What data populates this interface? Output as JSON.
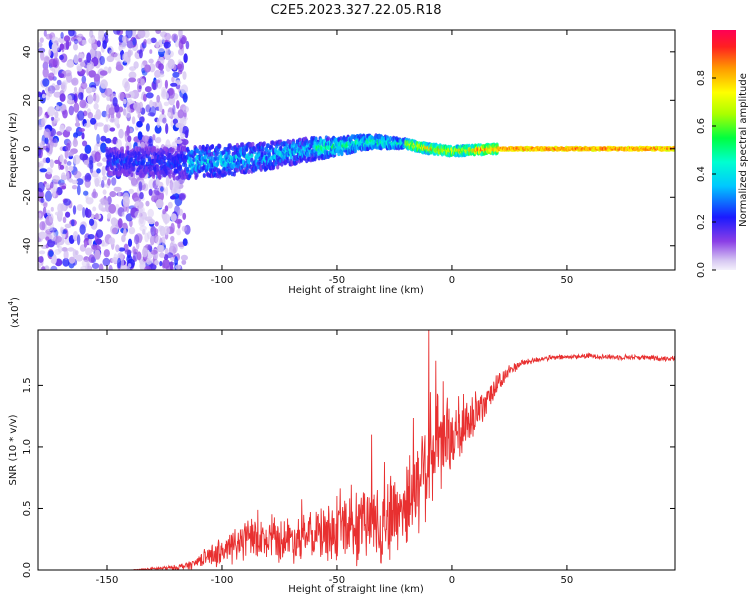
{
  "title": "C2E5.2023.327.22.05.R18",
  "chart_data": [
    {
      "type": "heatmap",
      "title": "C2E5.2023.327.22.05.R18",
      "xlabel": "Height of straight line (km)",
      "ylabel": "Frequency (Hz)",
      "xlim": [
        -180,
        97
      ],
      "ylim": [
        -50,
        49
      ],
      "x_ticks": [
        -150,
        -100,
        -50,
        0,
        50
      ],
      "y_ticks": [
        -40,
        -20,
        0,
        20,
        40
      ],
      "x_tick_labels": [
        "-150",
        "-100",
        "-50",
        "0",
        "50"
      ],
      "y_tick_labels": [
        "-40",
        "-20",
        "0",
        "20",
        "40"
      ],
      "noise_region_x": [
        -180,
        -115
      ],
      "ridge": {
        "description_points_x": [
          -150,
          -120,
          -100,
          -80,
          -60,
          -50,
          -35,
          -20,
          -10,
          0,
          20,
          50,
          97
        ],
        "center_freq_hz": [
          -5,
          -6,
          -5,
          -3,
          0,
          1,
          3,
          2,
          0,
          -1,
          0,
          0,
          0
        ],
        "halfwidth_hz": [
          6,
          7,
          7,
          6,
          5,
          4,
          3,
          2,
          2,
          2,
          2,
          2,
          2
        ]
      },
      "colorbar": {
        "label": "Normalized spectral amplitude",
        "range": [
          0.0,
          1.0
        ],
        "ticks": [
          0.0,
          0.2,
          0.4,
          0.6,
          0.8
        ],
        "tick_labels": [
          "0.0",
          "0.2",
          "0.4",
          "0.6",
          "0.8"
        ]
      }
    },
    {
      "type": "line",
      "xlabel": "Height of straight line (km)",
      "ylabel": "SNR (10 * v/v)",
      "exponent_label": "(x10",
      "exponent_power": "4",
      "exponent_close": ")",
      "xlim": [
        -180,
        97
      ],
      "ylim": [
        0.0,
        1.95
      ],
      "x_ticks": [
        -150,
        -100,
        -50,
        0,
        50
      ],
      "y_ticks": [
        0.0,
        0.5,
        1.0,
        1.5
      ],
      "x_tick_labels": [
        "-150",
        "-100",
        "-50",
        "0",
        "50"
      ],
      "y_tick_labels": [
        "0.0",
        "0.5",
        "1.0",
        "1.5"
      ],
      "line_color": "#e83030",
      "series": [
        {
          "name": "SNR",
          "x": [
            -180,
            -160,
            -140,
            -130,
            -120,
            -112,
            -108,
            -100,
            -95,
            -90,
            -85,
            -80,
            -75,
            -70,
            -65,
            -60,
            -55,
            -50,
            -45,
            -40,
            -35,
            -30,
            -25,
            -20,
            -17,
            -15,
            -12,
            -10,
            -8,
            -5,
            -2,
            0,
            3,
            5,
            8,
            10,
            15,
            20,
            25,
            30,
            40,
            50,
            60,
            70,
            80,
            90,
            97
          ],
          "y": [
            0.0,
            0.0,
            0.0,
            0.01,
            0.02,
            0.05,
            0.1,
            0.15,
            0.2,
            0.25,
            0.25,
            0.22,
            0.25,
            0.25,
            0.27,
            0.28,
            0.3,
            0.3,
            0.35,
            0.33,
            0.4,
            0.4,
            0.45,
            0.55,
            0.6,
            0.7,
            0.85,
            0.9,
            0.95,
            1.0,
            1.05,
            1.05,
            1.1,
            1.15,
            1.2,
            1.25,
            1.4,
            1.5,
            1.62,
            1.68,
            1.72,
            1.73,
            1.74,
            1.73,
            1.73,
            1.72,
            1.72
          ],
          "noise": [
            0.0,
            0.0,
            0.0,
            0.01,
            0.02,
            0.04,
            0.06,
            0.12,
            0.15,
            0.16,
            0.16,
            0.15,
            0.17,
            0.18,
            0.18,
            0.2,
            0.22,
            0.22,
            0.25,
            0.3,
            0.32,
            0.35,
            0.35,
            0.35,
            0.4,
            0.4,
            0.4,
            0.45,
            0.45,
            0.35,
            0.3,
            0.25,
            0.25,
            0.25,
            0.2,
            0.2,
            0.12,
            0.08,
            0.05,
            0.03,
            0.02,
            0.02,
            0.02,
            0.02,
            0.02,
            0.02,
            0.02
          ],
          "peaks": [
            {
              "x": -35,
              "y": 1.1
            },
            {
              "x": -10,
              "y": 1.95
            },
            {
              "x": -7,
              "y": 1.7
            },
            {
              "x": -2,
              "y": 1.4
            },
            {
              "x": 5,
              "y": 1.43
            }
          ]
        }
      ]
    }
  ]
}
